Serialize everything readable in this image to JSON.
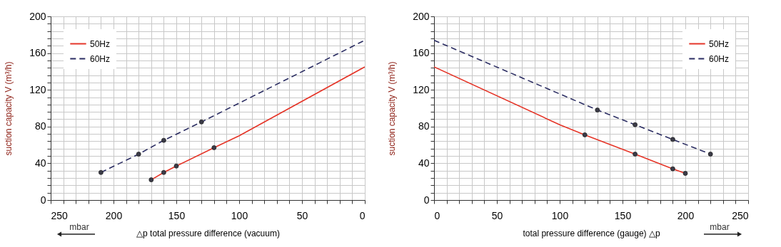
{
  "chart_data": [
    {
      "type": "line",
      "xlabel": "△p total pressure difference (vacuum)",
      "ylabel": "suction capacity V (m³/h)",
      "annotations": [
        "mbar"
      ],
      "xlim": [
        250,
        0
      ],
      "ylim": [
        0,
        200
      ],
      "xticks": [
        250,
        {
          "value": 240,
          "label": null
        },
        {
          "value": 230,
          "label": null
        },
        {
          "value": 220,
          "label": null
        },
        {
          "value": 210,
          "label": null
        },
        200,
        {
          "value": 190,
          "label": null
        },
        {
          "value": 180,
          "label": null
        },
        {
          "value": 170,
          "label": null
        },
        {
          "value": 160,
          "label": null
        },
        150,
        {
          "value": 140,
          "label": null
        },
        {
          "value": 130,
          "label": null
        },
        {
          "value": 120,
          "label": null
        },
        {
          "value": 110,
          "label": null
        },
        100,
        {
          "value": 90,
          "label": null
        },
        {
          "value": 80,
          "label": null
        },
        {
          "value": 70,
          "label": null
        },
        {
          "value": 60,
          "label": null
        },
        50,
        {
          "value": 40,
          "label": null
        },
        {
          "value": 30,
          "label": null
        },
        {
          "value": 20,
          "label": null
        },
        {
          "value": 10,
          "label": null
        },
        0
      ],
      "yticks": [
        0,
        {
          "value": 8,
          "label": null
        },
        {
          "value": 16,
          "label": null
        },
        {
          "value": 24,
          "label": null
        },
        {
          "value": 32,
          "label": null
        },
        40,
        {
          "value": 48,
          "label": null
        },
        {
          "value": 56,
          "label": null
        },
        {
          "value": 64,
          "label": null
        },
        {
          "value": 72,
          "label": null
        },
        80,
        {
          "value": 88,
          "label": null
        },
        {
          "value": 96,
          "label": null
        },
        {
          "value": 104,
          "label": null
        },
        {
          "value": 112,
          "label": null
        },
        120,
        {
          "value": 128,
          "label": null
        },
        {
          "value": 136,
          "label": null
        },
        {
          "value": 144,
          "label": null
        },
        {
          "value": 152,
          "label": null
        },
        160,
        {
          "value": 168,
          "label": null
        },
        {
          "value": 176,
          "label": null
        },
        {
          "value": 184,
          "label": null
        },
        {
          "value": 192,
          "label": null
        },
        200
      ],
      "grid": true,
      "legend": "top left",
      "series": [
        {
          "name": "50Hz",
          "color": "#e53528",
          "line_style": "solid",
          "x": [
            170,
            160,
            150,
            120,
            100,
            0
          ],
          "values": [
            22,
            30,
            37,
            57,
            70,
            145
          ]
        },
        {
          "name": "60Hz",
          "color": "#2b2d62",
          "line_style": "dashed",
          "x": [
            210,
            180,
            160,
            130,
            0
          ],
          "values": [
            30,
            50,
            65,
            85,
            174
          ]
        },
        {
          "type": "scatter",
          "color": "#3b3b48",
          "marker": "circle",
          "x": [
            170,
            160,
            150,
            120
          ],
          "values": [
            22,
            30,
            37,
            57
          ]
        },
        {
          "type": "scatter",
          "color": "#3b3b48",
          "marker": "circle",
          "x": [
            210,
            180,
            160,
            130
          ],
          "values": [
            30,
            50,
            65,
            85
          ]
        }
      ]
    },
    {
      "type": "line",
      "xlabel": "total pressure difference (gauge) △p",
      "ylabel": "suction capacity V (m³/h)",
      "annotations": [
        "mbar"
      ],
      "xlim": [
        0,
        250
      ],
      "ylim": [
        0,
        200
      ],
      "xticks": [
        0,
        {
          "value": 10,
          "label": null
        },
        {
          "value": 20,
          "label": null
        },
        {
          "value": 30,
          "label": null
        },
        {
          "value": 40,
          "label": null
        },
        50,
        {
          "value": 60,
          "label": null
        },
        {
          "value": 70,
          "label": null
        },
        {
          "value": 80,
          "label": null
        },
        {
          "value": 90,
          "label": null
        },
        100,
        {
          "value": 110,
          "label": null
        },
        {
          "value": 120,
          "label": null
        },
        {
          "value": 130,
          "label": null
        },
        {
          "value": 140,
          "label": null
        },
        150,
        {
          "value": 160,
          "label": null
        },
        {
          "value": 170,
          "label": null
        },
        {
          "value": 180,
          "label": null
        },
        {
          "value": 190,
          "label": null
        },
        200,
        {
          "value": 210,
          "label": null
        },
        {
          "value": 220,
          "label": null
        },
        {
          "value": 230,
          "label": null
        },
        {
          "value": 240,
          "label": null
        },
        250
      ],
      "yticks": [
        0,
        {
          "value": 8,
          "label": null
        },
        {
          "value": 16,
          "label": null
        },
        {
          "value": 24,
          "label": null
        },
        {
          "value": 32,
          "label": null
        },
        40,
        {
          "value": 48,
          "label": null
        },
        {
          "value": 56,
          "label": null
        },
        {
          "value": 64,
          "label": null
        },
        {
          "value": 72,
          "label": null
        },
        80,
        {
          "value": 88,
          "label": null
        },
        {
          "value": 96,
          "label": null
        },
        {
          "value": 104,
          "label": null
        },
        {
          "value": 112,
          "label": null
        },
        120,
        {
          "value": 128,
          "label": null
        },
        {
          "value": 136,
          "label": null
        },
        {
          "value": 144,
          "label": null
        },
        {
          "value": 152,
          "label": null
        },
        160,
        {
          "value": 168,
          "label": null
        },
        {
          "value": 176,
          "label": null
        },
        {
          "value": 184,
          "label": null
        },
        {
          "value": 192,
          "label": null
        },
        200
      ],
      "grid": true,
      "legend": "top right",
      "series": [
        {
          "name": "50Hz",
          "color": "#e53528",
          "line_style": "solid",
          "x": [
            0,
            100,
            120,
            160,
            190,
            200
          ],
          "values": [
            145,
            82,
            71,
            50,
            34,
            29
          ]
        },
        {
          "name": "60Hz",
          "color": "#2b2d62",
          "line_style": "dashed",
          "x": [
            0,
            130,
            160,
            190,
            220
          ],
          "values": [
            174,
            98,
            82,
            66,
            50
          ]
        },
        {
          "type": "scatter",
          "color": "#3b3b48",
          "marker": "circle",
          "x": [
            120,
            160,
            190,
            200
          ],
          "values": [
            71,
            50,
            34,
            29
          ]
        },
        {
          "type": "scatter",
          "color": "#3b3b48",
          "marker": "circle",
          "x": [
            130,
            160,
            190,
            220
          ],
          "values": [
            98,
            82,
            66,
            50
          ]
        }
      ]
    }
  ]
}
